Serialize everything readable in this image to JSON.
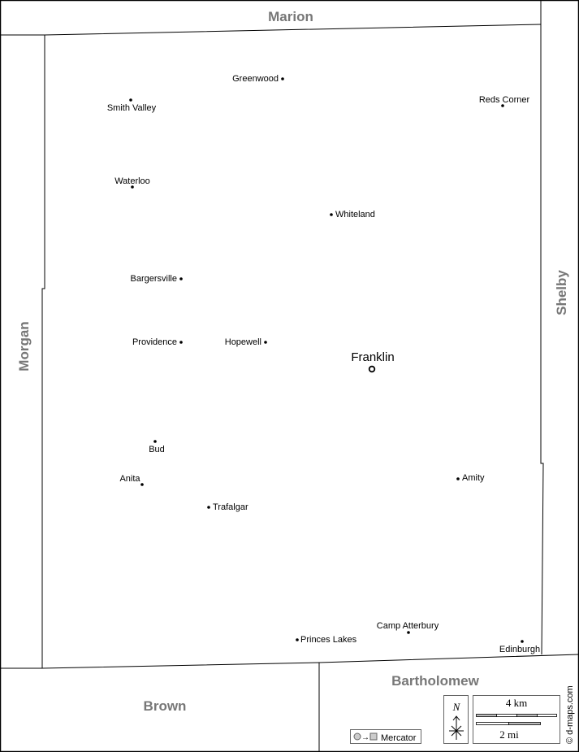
{
  "neighbors": {
    "north": "Marion",
    "east": "Shelby",
    "west": "Morgan",
    "south_west": "Brown",
    "south_east": "Bartholomew"
  },
  "county_seat": {
    "name": "Franklin",
    "icon": "circle-seat-icon"
  },
  "towns": [
    {
      "name": "Greenwood"
    },
    {
      "name": "Smith Valley"
    },
    {
      "name": "Reds Corner"
    },
    {
      "name": "Waterloo"
    },
    {
      "name": "Whiteland"
    },
    {
      "name": "Bargersville"
    },
    {
      "name": "Providence"
    },
    {
      "name": "Hopewell"
    },
    {
      "name": "Bud"
    },
    {
      "name": "Anita"
    },
    {
      "name": "Amity"
    },
    {
      "name": "Trafalgar"
    },
    {
      "name": "Camp Atterbury"
    },
    {
      "name": "Princes Lakes"
    },
    {
      "name": "Edinburgh"
    }
  ],
  "legend": {
    "projection": "Mercator",
    "north": "N",
    "scale_km": "4 km",
    "scale_mi": "2 mi",
    "credit": "© d-maps.com"
  },
  "colors": {
    "county_label": "#777777",
    "boundary": "#000000",
    "scale_fill": "#bbbbbb"
  }
}
